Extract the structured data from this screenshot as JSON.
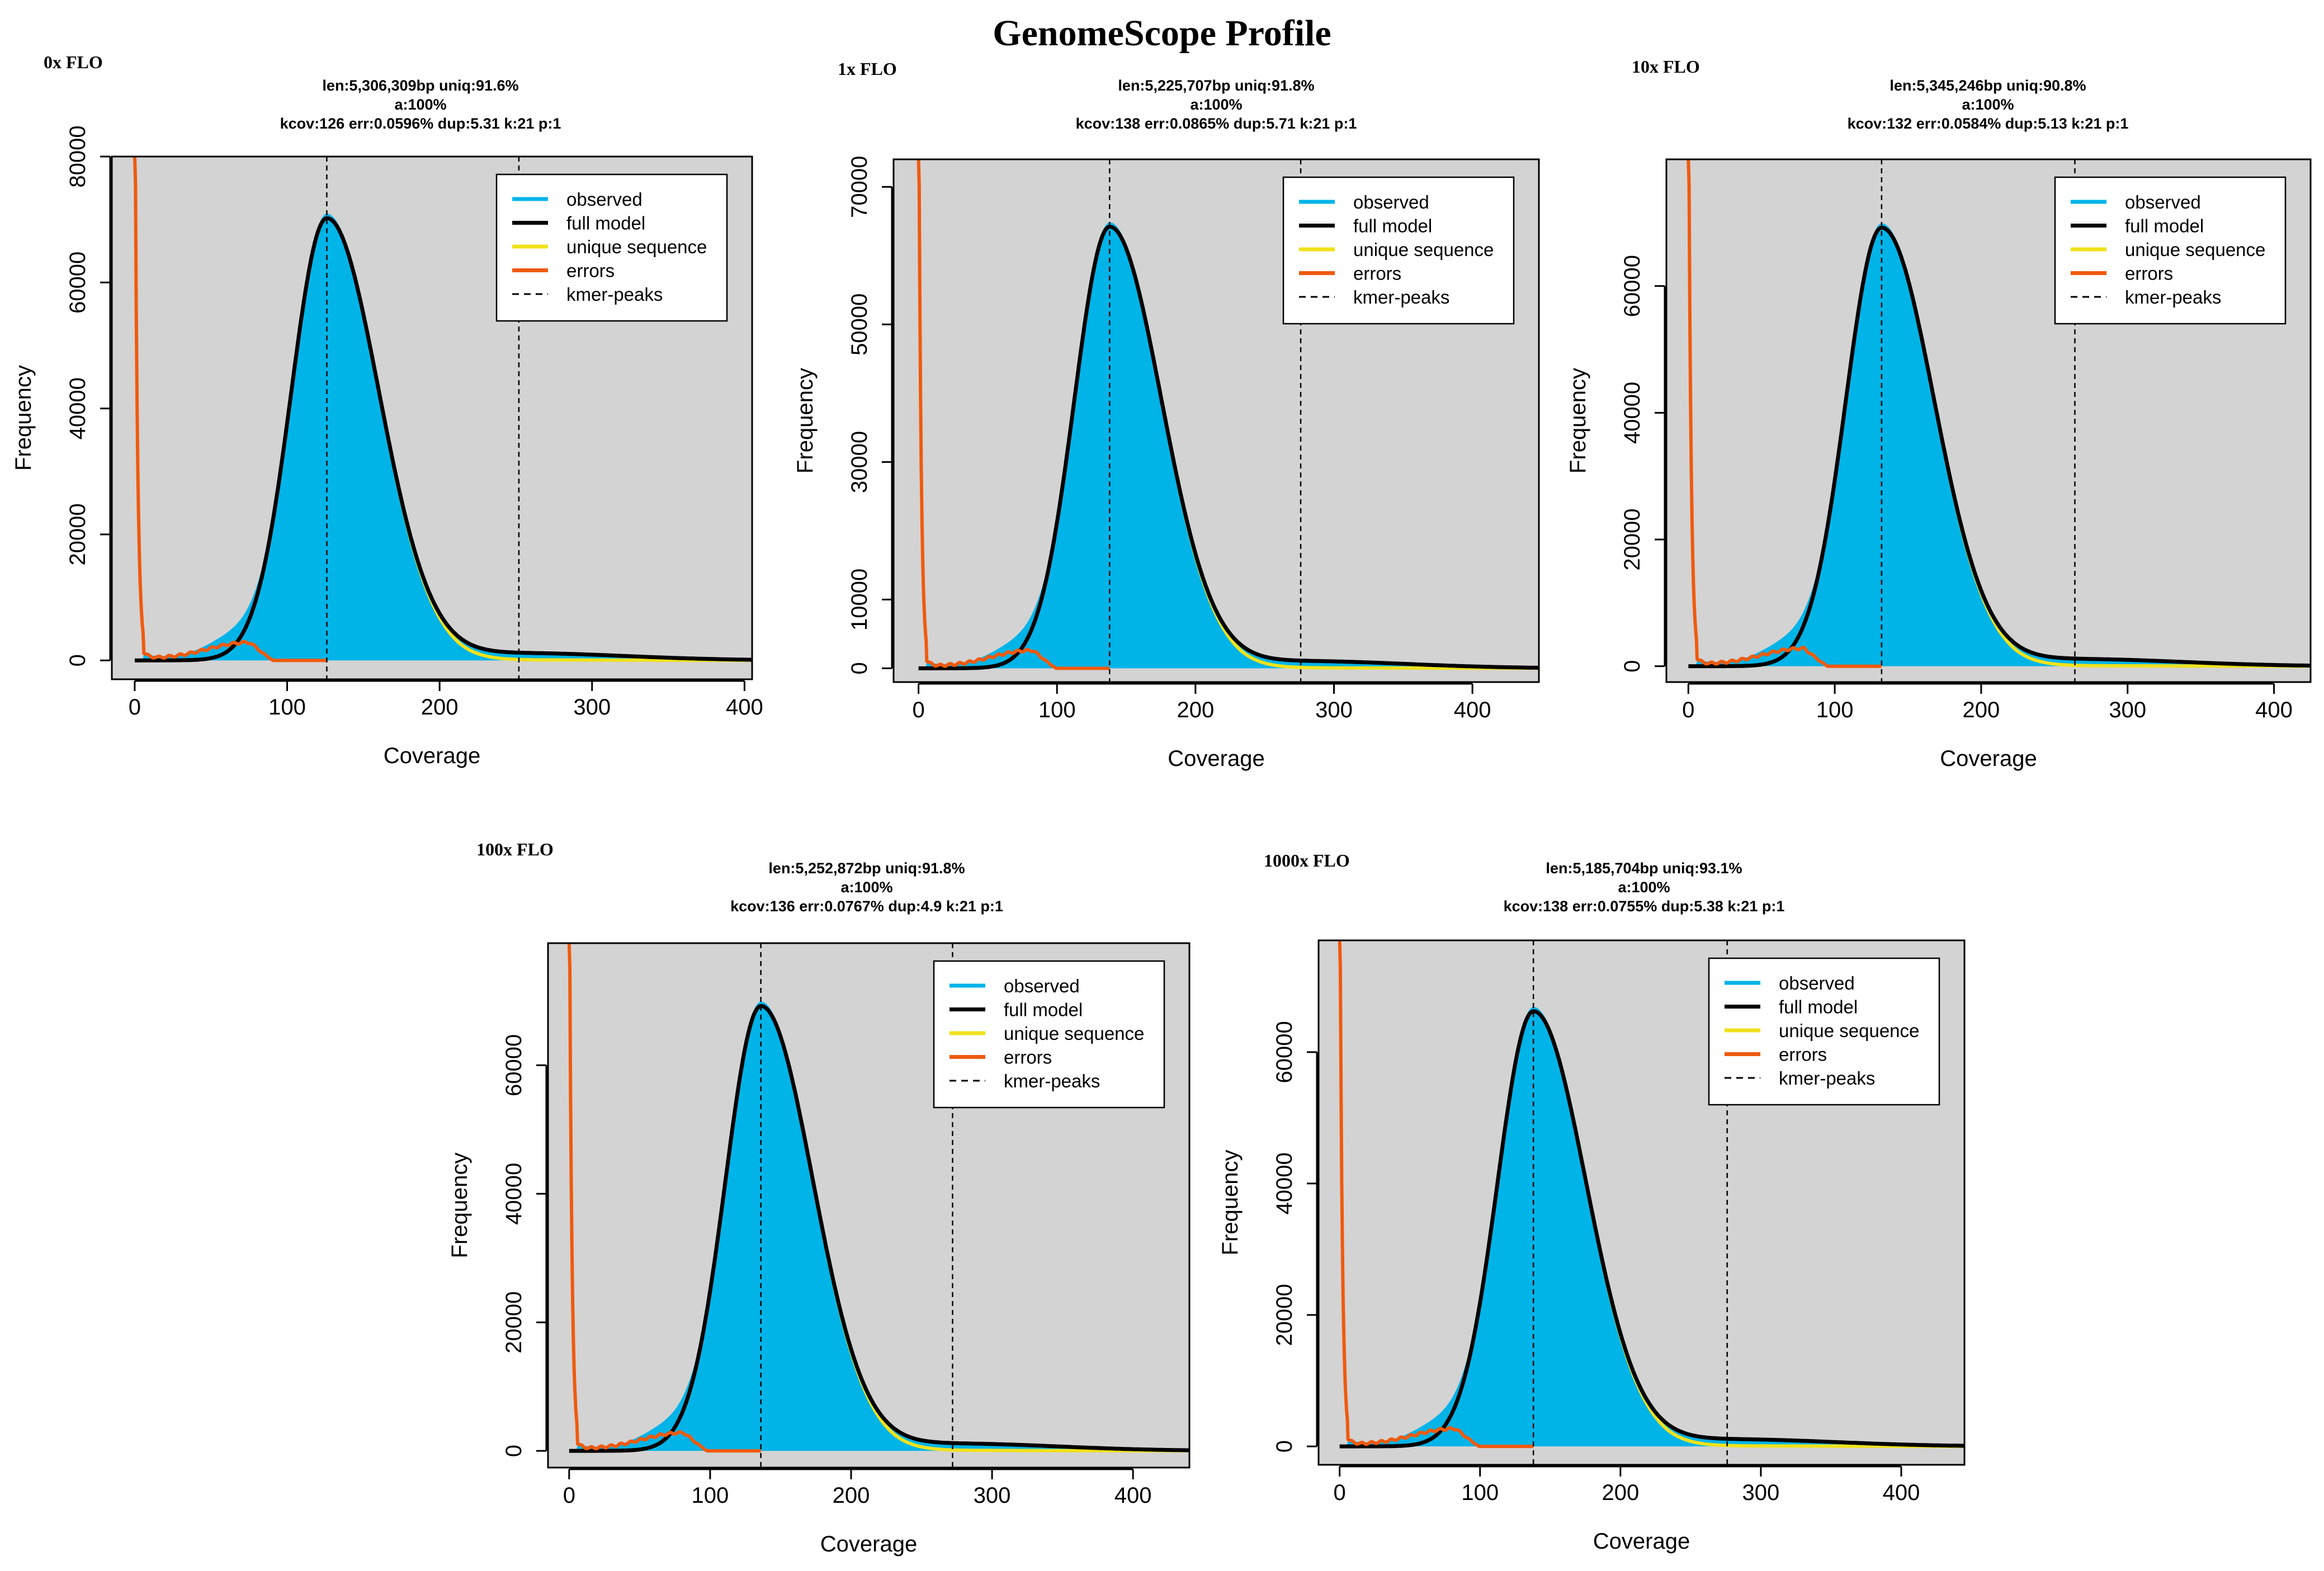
{
  "title": "GenomeScope Profile",
  "colors": {
    "observed": "#00b4e8",
    "full_model": "#000000",
    "unique_sequence": "#f0e21c",
    "errors": "#ef5a0e",
    "kmer_peaks": "#000000",
    "plot_background": "#d3d3d3"
  },
  "chart_data": [
    {
      "type": "area",
      "sample_label": "0x FLO",
      "stats": [
        "len:5,306,309bp uniq:91.6%",
        "a:100%",
        "kcov:126 err:0.0596%  dup:5.31  k:21 p:1"
      ],
      "xlabel": "Coverage",
      "ylabel": "Frequency",
      "xlim": [
        -15,
        405
      ],
      "ylim": [
        -3000,
        80000
      ],
      "xticks": [
        0,
        100,
        200,
        300,
        400
      ],
      "yticks": [
        0,
        20000,
        40000,
        60000,
        80000
      ],
      "kmer_peaks": [
        126,
        252
      ],
      "peak": 70000,
      "legend": {
        "position": "top-right",
        "items": [
          "observed",
          "full model",
          "unique sequence",
          "errors",
          "kmer-peaks"
        ]
      }
    },
    {
      "type": "area",
      "sample_label": "1x FLO",
      "stats": [
        "len:5,225,707bp uniq:91.8%",
        "a:100%",
        "kcov:138 err:0.0865%  dup:5.71  k:21 p:1"
      ],
      "xlabel": "Coverage",
      "ylabel": "Frequency",
      "xlim": [
        -18,
        448
      ],
      "ylim": [
        -2000,
        74000
      ],
      "xticks": [
        0,
        100,
        200,
        300,
        400
      ],
      "yticks": [
        0,
        10000,
        30000,
        50000,
        70000
      ],
      "kmer_peaks": [
        138,
        276
      ],
      "peak": 64000,
      "legend": {
        "position": "top-right",
        "items": [
          "observed",
          "full model",
          "unique sequence",
          "errors",
          "kmer-peaks"
        ]
      }
    },
    {
      "type": "area",
      "sample_label": "10x FLO",
      "stats": [
        "len:5,345,246bp uniq:90.8%",
        "a:100%",
        "kcov:132 err:0.0584%  dup:5.13  k:21 p:1"
      ],
      "xlabel": "Coverage",
      "ylabel": "Frequency",
      "xlim": [
        -15,
        425
      ],
      "ylim": [
        -2500,
        80000
      ],
      "xticks": [
        0,
        100,
        200,
        300,
        400
      ],
      "yticks": [
        0,
        20000,
        40000,
        60000
      ],
      "kmer_peaks": [
        132,
        264
      ],
      "peak": 69000,
      "legend": {
        "position": "top-right",
        "items": [
          "observed",
          "full model",
          "unique sequence",
          "errors",
          "kmer-peaks"
        ]
      }
    },
    {
      "type": "area",
      "sample_label": "100x FLO",
      "stats": [
        "len:5,252,872bp uniq:91.8%",
        "a:100%",
        "kcov:136 err:0.0767%  dup:4.9  k:21 p:1"
      ],
      "xlabel": "Coverage",
      "ylabel": "Frequency",
      "xlim": [
        -15,
        440
      ],
      "ylim": [
        -2600,
        79000
      ],
      "xticks": [
        0,
        100,
        200,
        300,
        400
      ],
      "yticks": [
        0,
        20000,
        40000,
        60000
      ],
      "kmer_peaks": [
        136,
        272
      ],
      "peak": 69000,
      "legend": {
        "position": "top-right",
        "items": [
          "observed",
          "full model",
          "unique sequence",
          "errors",
          "kmer-peaks"
        ]
      }
    },
    {
      "type": "area",
      "sample_label": "1000x FLO",
      "stats": [
        "len:5,185,704bp uniq:93.1%",
        "a:100%",
        "kcov:138 err:0.0755%  dup:5.38  k:21 p:1"
      ],
      "xlabel": "Coverage",
      "ylabel": "Frequency",
      "xlim": [
        -15,
        445
      ],
      "ylim": [
        -2800,
        77000
      ],
      "xticks": [
        0,
        100,
        200,
        300,
        400
      ],
      "yticks": [
        0,
        20000,
        40000,
        60000
      ],
      "kmer_peaks": [
        138,
        276
      ],
      "peak": 66000,
      "legend": {
        "position": "top-right",
        "items": [
          "observed",
          "full model",
          "unique sequence",
          "errors",
          "kmer-peaks"
        ]
      }
    }
  ]
}
